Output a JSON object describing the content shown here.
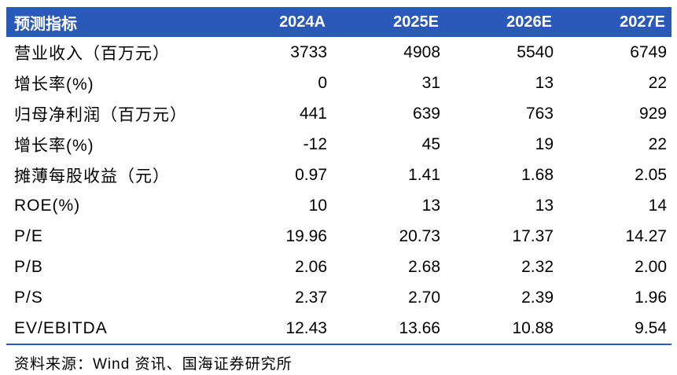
{
  "header": [
    "预测指标",
    "2024A",
    "2025E",
    "2026E",
    "2027E"
  ],
  "rows": [
    [
      "营业收入（百万元）",
      "3733",
      "4908",
      "5540",
      "6749"
    ],
    [
      "增长率(%)",
      "0",
      "31",
      "13",
      "22"
    ],
    [
      "归母净利润（百万元）",
      "441",
      "639",
      "763",
      "929"
    ],
    [
      "增长率(%)",
      "-12",
      "45",
      "19",
      "22"
    ],
    [
      "摊薄每股收益（元）",
      "0.97",
      "1.41",
      "1.68",
      "2.05"
    ],
    [
      "ROE(%)",
      "10",
      "13",
      "13",
      "14"
    ],
    [
      "P/E",
      "19.96",
      "20.73",
      "17.37",
      "14.27"
    ],
    [
      "P/B",
      "2.06",
      "2.68",
      "2.32",
      "2.00"
    ],
    [
      "P/S",
      "2.37",
      "2.70",
      "2.39",
      "1.96"
    ],
    [
      "EV/EBITDA",
      "12.43",
      "13.66",
      "10.88",
      "9.54"
    ]
  ],
  "source": "资料来源：Wind 资讯、国海证券研究所",
  "colors": {
    "header_bg": "#2a5ab8",
    "header_text": "#ffffff"
  }
}
